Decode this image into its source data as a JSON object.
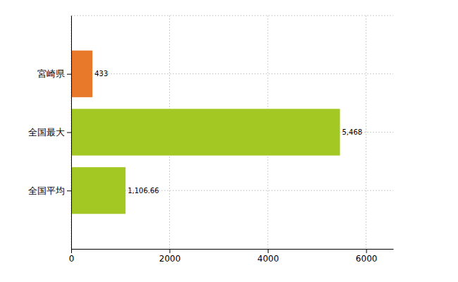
{
  "chart_data": {
    "type": "bar",
    "orientation": "horizontal",
    "categories": [
      "宮崎県",
      "全国最大",
      "全国平均"
    ],
    "values": [
      433,
      5468,
      1106.66
    ],
    "value_labels": [
      "433",
      "5,468",
      "1,106.66"
    ],
    "colors": [
      "#e8792a",
      "#a3c823",
      "#a3c823"
    ],
    "xlim": [
      0,
      6550
    ],
    "xticks": [
      0,
      2000,
      4000,
      6000
    ],
    "grid": true,
    "data_labels": true
  }
}
